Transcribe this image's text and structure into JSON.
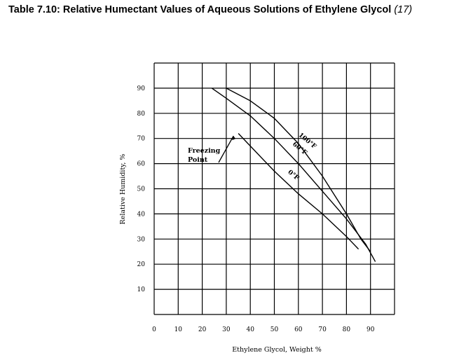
{
  "title": {
    "text": "Table 7.10: Relative Humectant Values of Aqueous Solutions of Ethylene Glycol",
    "ref": "(17)"
  },
  "chart_data": {
    "type": "line",
    "xlabel": "Ethylene Glycol, Weight %",
    "ylabel": "Relative Humidity, %",
    "xlim": [
      0,
      100
    ],
    "ylim": [
      0,
      100
    ],
    "x_ticks": [
      0,
      10,
      20,
      30,
      40,
      50,
      60,
      70,
      80,
      90
    ],
    "y_ticks": [
      10,
      20,
      30,
      40,
      50,
      60,
      70,
      80,
      90
    ],
    "grid": true,
    "series": [
      {
        "name": "100°F",
        "label_text": "100°F",
        "x": [
          30,
          40,
          50,
          60,
          70,
          80,
          86,
          90
        ],
        "y": [
          90,
          85,
          78,
          68,
          55,
          40,
          30,
          25
        ]
      },
      {
        "name": "60°F",
        "label_text": "60°F",
        "x": [
          24,
          30,
          40,
          50,
          60,
          70,
          80,
          88,
          92
        ],
        "y": [
          90,
          86,
          79,
          70,
          60,
          49,
          38,
          28,
          21
        ]
      },
      {
        "name": "0°F",
        "label_text": "0°F",
        "x": [
          35,
          40,
          50,
          60,
          70,
          80,
          85
        ],
        "y": [
          72,
          67,
          57,
          48,
          40,
          31,
          26
        ]
      }
    ],
    "annotations": [
      {
        "lines": [
          "Freezing",
          "Point"
        ],
        "points_to": {
          "x": 33,
          "y": 71
        }
      }
    ]
  }
}
